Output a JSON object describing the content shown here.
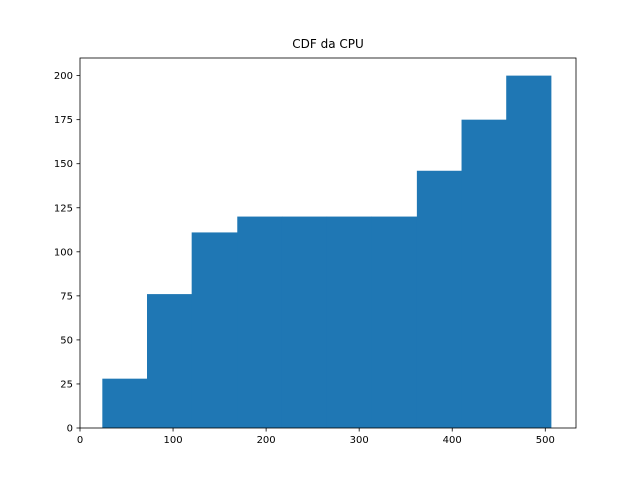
{
  "chart_data": {
    "type": "bar",
    "title": "CDF da CPU",
    "xlabel": "",
    "ylabel": "",
    "xlim": [
      0,
      533
    ],
    "ylim": [
      0,
      210
    ],
    "grid": false,
    "bar_color": "#1f77b4",
    "bins": [
      {
        "x0": 24,
        "x1": 72,
        "value": 28
      },
      {
        "x0": 72,
        "x1": 120,
        "value": 76
      },
      {
        "x0": 120,
        "x1": 169,
        "value": 111
      },
      {
        "x0": 169,
        "x1": 217,
        "value": 120
      },
      {
        "x0": 217,
        "x1": 265,
        "value": 120
      },
      {
        "x0": 265,
        "x1": 313,
        "value": 120
      },
      {
        "x0": 313,
        "x1": 362,
        "value": 120
      },
      {
        "x0": 362,
        "x1": 410,
        "value": 146
      },
      {
        "x0": 410,
        "x1": 458,
        "value": 175
      },
      {
        "x0": 458,
        "x1": 506,
        "value": 200
      }
    ],
    "x_ticks": [
      {
        "value": 0,
        "label": "0"
      },
      {
        "value": 100,
        "label": "100"
      },
      {
        "value": 200,
        "label": "200"
      },
      {
        "value": 300,
        "label": "300"
      },
      {
        "value": 400,
        "label": "400"
      },
      {
        "value": 500,
        "label": "500"
      }
    ],
    "y_ticks": [
      {
        "value": 0,
        "label": "0"
      },
      {
        "value": 25,
        "label": "25"
      },
      {
        "value": 50,
        "label": "50"
      },
      {
        "value": 75,
        "label": "75"
      },
      {
        "value": 100,
        "label": "100"
      },
      {
        "value": 125,
        "label": "125"
      },
      {
        "value": 150,
        "label": "150"
      },
      {
        "value": 175,
        "label": "175"
      },
      {
        "value": 200,
        "label": "200"
      }
    ]
  }
}
